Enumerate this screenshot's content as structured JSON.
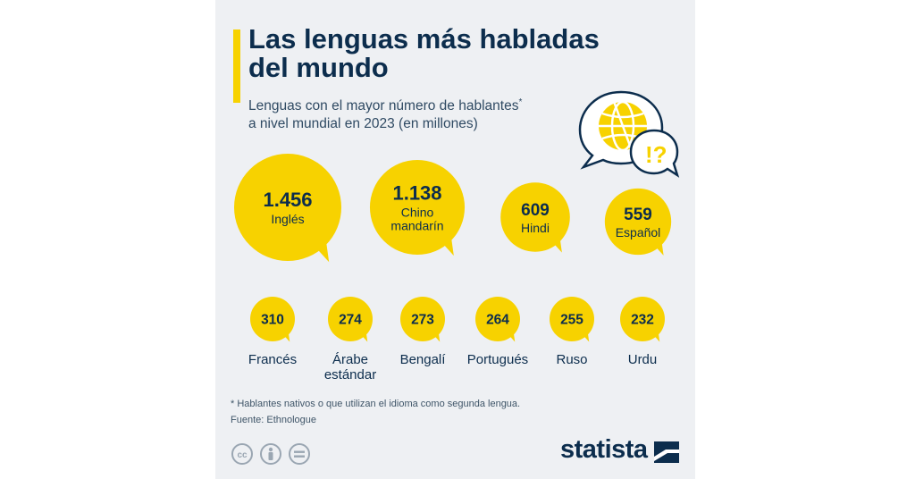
{
  "header": {
    "title": "Las lenguas más habladas del mundo",
    "subtitle": "Lenguas con el mayor número de hablantes",
    "subtitle_mark": "*",
    "subtitle_line2": "a nivel mundial en 2023 (en millones)"
  },
  "colors": {
    "bubble": "#f7d200",
    "text": "#0c2d4d",
    "background": "#eef0f3"
  },
  "icons": [
    "globe-speech-icon",
    "exclamation-question-icon",
    "cc-icon",
    "person-icon",
    "equals-icon",
    "statista-logo-icon"
  ],
  "chart_data": {
    "type": "bubble",
    "title": "Las lenguas más habladas del mundo",
    "unit": "millones de hablantes",
    "items": [
      {
        "value_label": "1.456",
        "label": "Inglés",
        "value": 1456
      },
      {
        "value_label": "1.138",
        "label": "Chino mandarín",
        "value": 1138
      },
      {
        "value_label": "609",
        "label": "Hindi",
        "value": 609
      },
      {
        "value_label": "559",
        "label": "Español",
        "value": 559
      },
      {
        "value_label": "310",
        "label": "Francés",
        "value": 310
      },
      {
        "value_label": "274",
        "label": "Árabe estándar",
        "value": 274
      },
      {
        "value_label": "273",
        "label": "Bengalí",
        "value": 273
      },
      {
        "value_label": "264",
        "label": "Portugués",
        "value": 264
      },
      {
        "value_label": "255",
        "label": "Ruso",
        "value": 255
      },
      {
        "value_label": "232",
        "label": "Urdu",
        "value": 232
      }
    ]
  },
  "footer": {
    "footnote": "* Hablantes nativos o que utilizan el idioma como segunda lengua.",
    "source": "Fuente: Ethnologue",
    "brand": "statista"
  }
}
